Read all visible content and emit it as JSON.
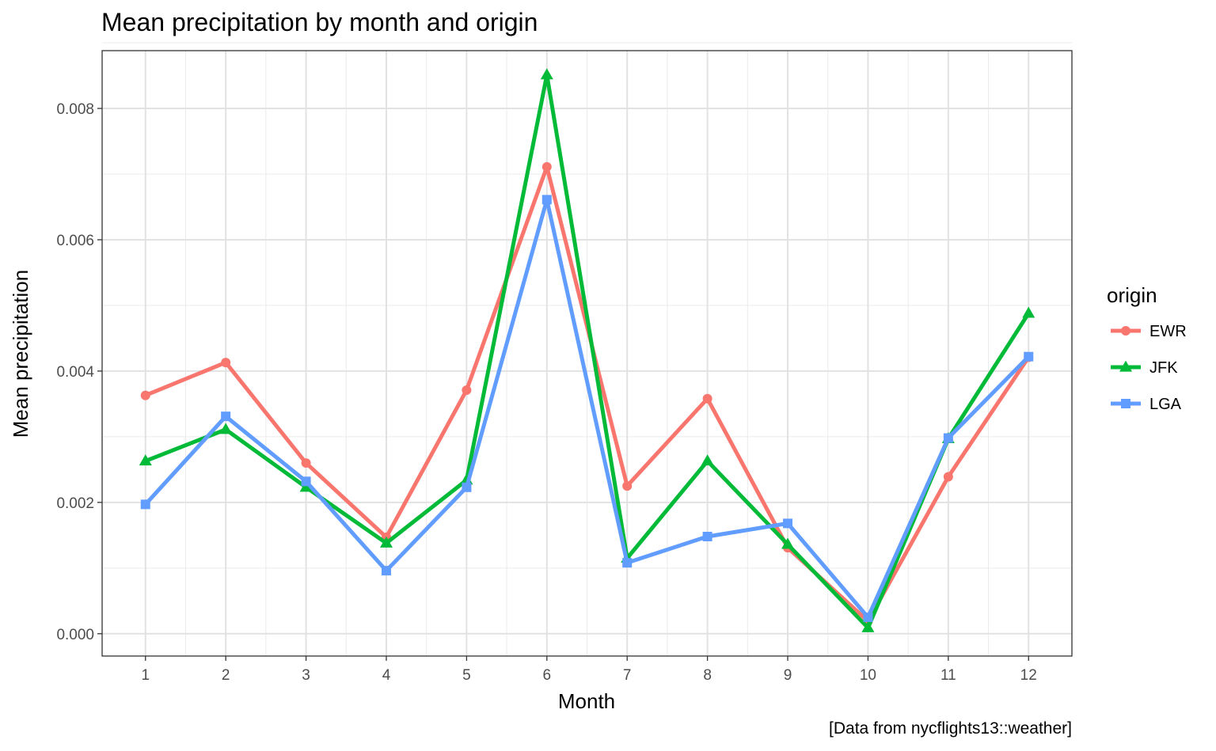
{
  "chart_data": {
    "type": "line",
    "title": "Mean precipitation by month and origin",
    "xlabel": "Month",
    "ylabel": "Mean precipitation",
    "caption": "[Data from nycflights13::weather]",
    "x": [
      1,
      2,
      3,
      4,
      5,
      6,
      7,
      8,
      9,
      10,
      11,
      12
    ],
    "xlim": [
      0.46,
      12.54
    ],
    "ylim": [
      -0.00034,
      0.00888
    ],
    "y_ticks": [
      0.0,
      0.002,
      0.004,
      0.006,
      0.008
    ],
    "y_tick_labels": [
      "0.000",
      "0.002",
      "0.004",
      "0.006",
      "0.008"
    ],
    "x_tick_labels": [
      "1",
      "2",
      "3",
      "4",
      "5",
      "6",
      "7",
      "8",
      "9",
      "10",
      "11",
      "12"
    ],
    "grid": true,
    "legend_title": "origin",
    "legend_position": "right",
    "series": [
      {
        "name": "EWR",
        "color": "#F8766D",
        "marker": "circle",
        "values": [
          0.00363,
          0.00413,
          0.0026,
          0.00147,
          0.00371,
          0.00711,
          0.00225,
          0.00358,
          0.00131,
          0.00019,
          0.00239,
          0.00421
        ]
      },
      {
        "name": "JFK",
        "color": "#00BA38",
        "marker": "triangle",
        "values": [
          0.00263,
          0.00311,
          0.00223,
          0.00138,
          0.00234,
          0.00851,
          0.00115,
          0.00263,
          0.00136,
          9e-05,
          0.00297,
          0.00488
        ]
      },
      {
        "name": "LGA",
        "color": "#619CFF",
        "marker": "square",
        "values": [
          0.00197,
          0.00331,
          0.00232,
          0.00096,
          0.00223,
          0.00661,
          0.00108,
          0.00148,
          0.00168,
          0.00025,
          0.00298,
          0.00422
        ]
      }
    ]
  }
}
